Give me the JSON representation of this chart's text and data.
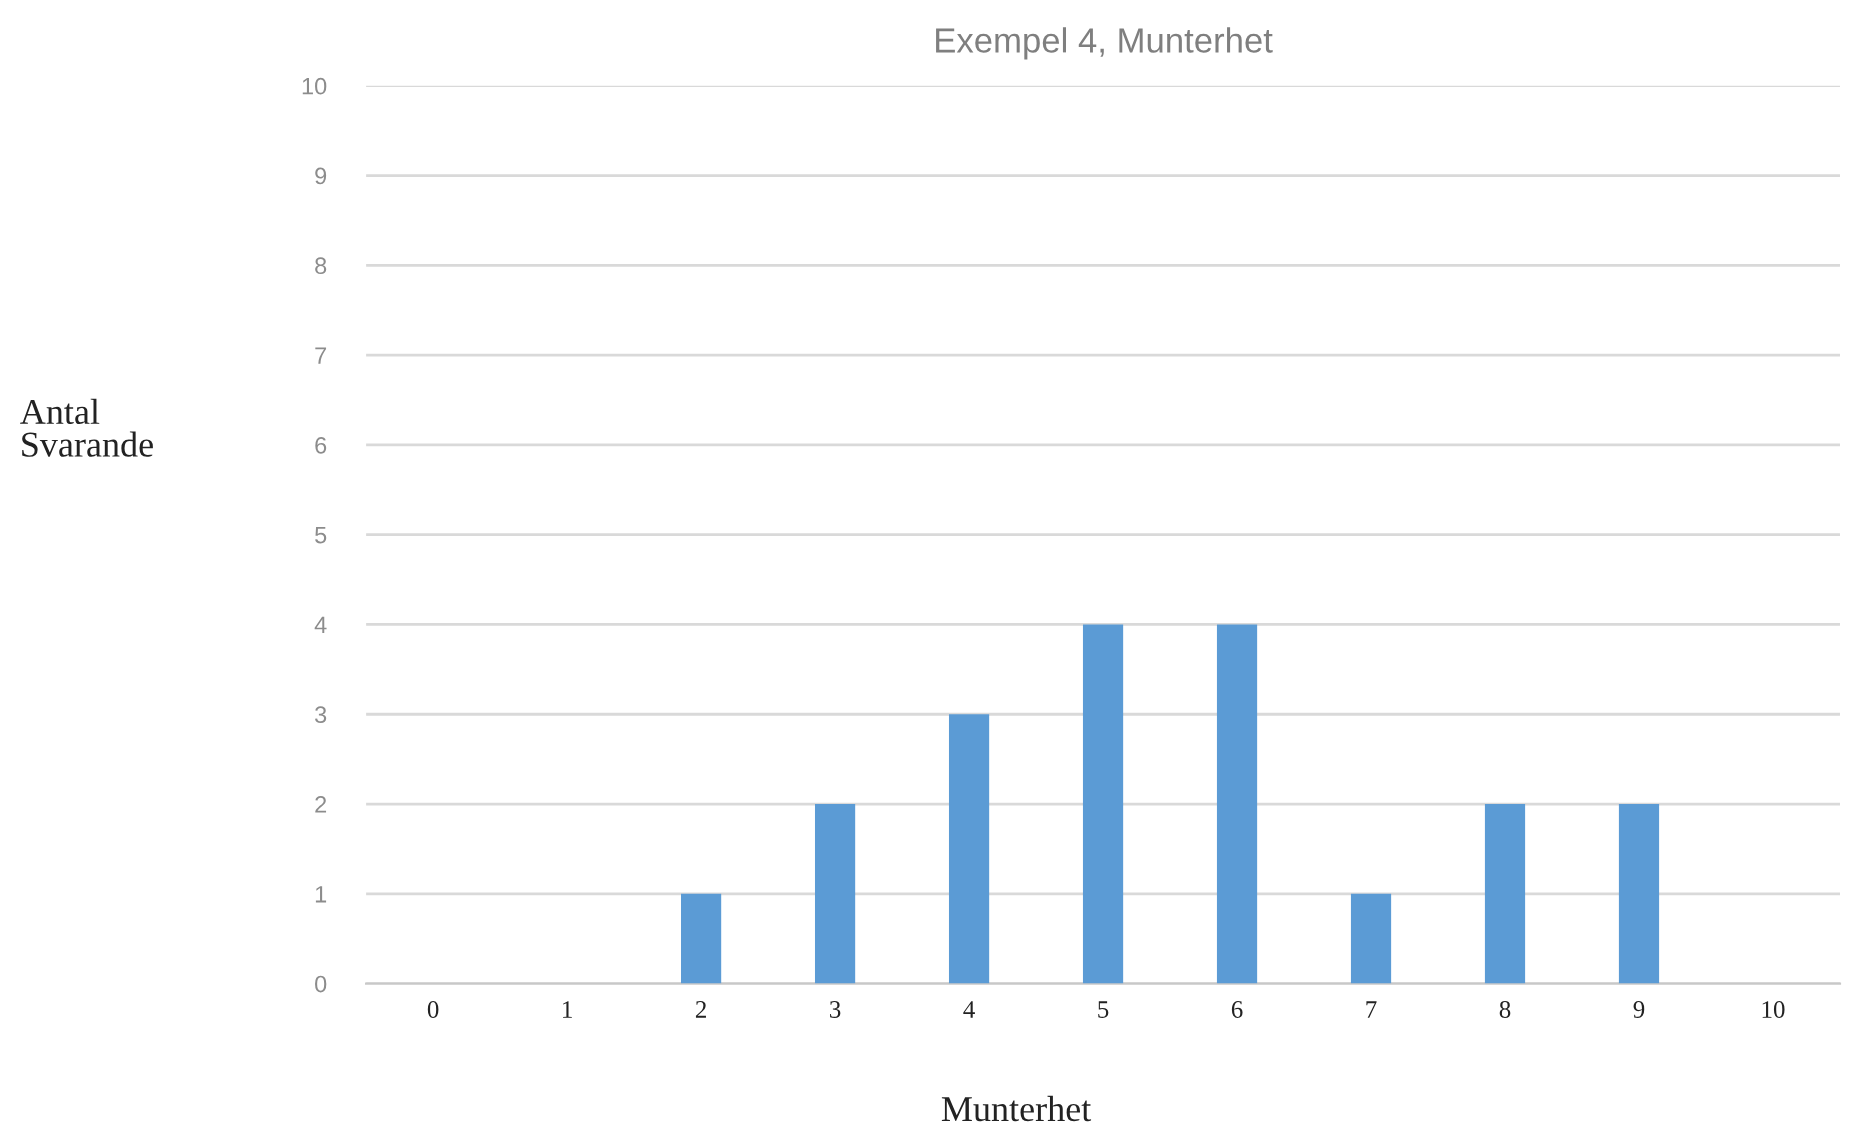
{
  "chart_data": {
    "type": "bar",
    "title": "Exempel 4, Munterhet",
    "xlabel": "Munterhet",
    "ylabel": "Antal\nSvarande",
    "categories": [
      "0",
      "1",
      "2",
      "3",
      "4",
      "5",
      "6",
      "7",
      "8",
      "9",
      "10"
    ],
    "values": [
      0,
      0,
      1,
      2,
      3,
      4,
      4,
      1,
      2,
      2,
      0
    ],
    "color": "#5b9bd5",
    "ylim": [
      0,
      10
    ],
    "yticks": [
      0,
      1,
      2,
      3,
      4,
      5,
      6,
      7,
      8,
      9,
      10
    ],
    "grid": "y"
  }
}
